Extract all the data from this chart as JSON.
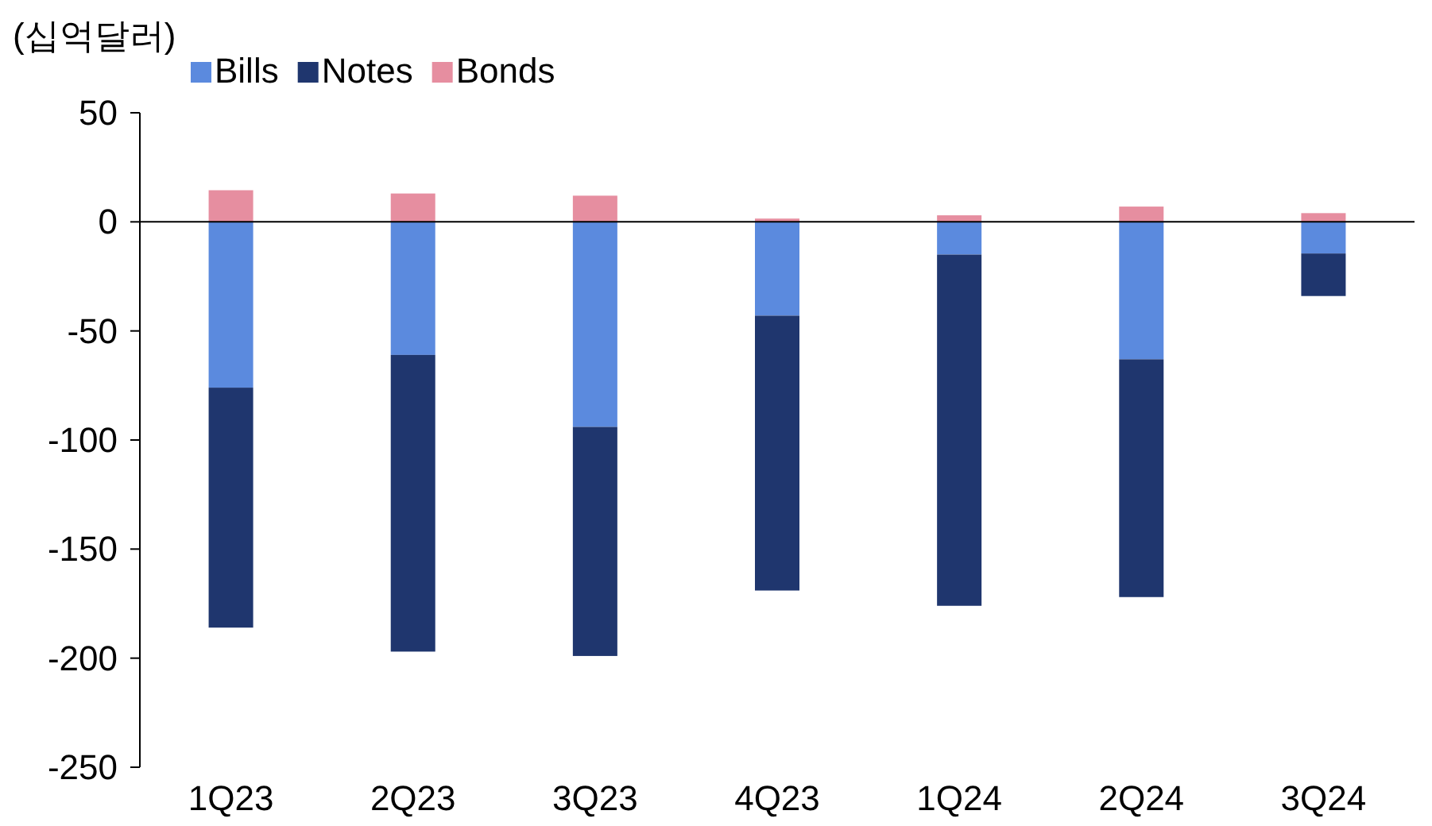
{
  "chart_data": {
    "type": "bar",
    "stacked": true,
    "ylabel": "(십억달러)",
    "categories": [
      "1Q23",
      "2Q23",
      "3Q23",
      "4Q23",
      "1Q24",
      "2Q24",
      "3Q24"
    ],
    "series": [
      {
        "name": "Bills",
        "color": "#5b8ade",
        "values": [
          -76,
          -61,
          -94,
          -43,
          -15,
          -63,
          -14.5
        ]
      },
      {
        "name": "Notes",
        "color": "#1f366e",
        "values": [
          -110,
          -136,
          -105,
          -126,
          -161,
          -109,
          -19.5
        ]
      },
      {
        "name": "Bonds",
        "color": "#e68ea0",
        "values": [
          14.5,
          13,
          12,
          1.5,
          3,
          7,
          4
        ]
      }
    ],
    "ylim": [
      -250,
      50
    ],
    "yticks": [
      -250,
      -200,
      -150,
      -100,
      -50,
      0,
      50
    ],
    "legend": "top left"
  }
}
